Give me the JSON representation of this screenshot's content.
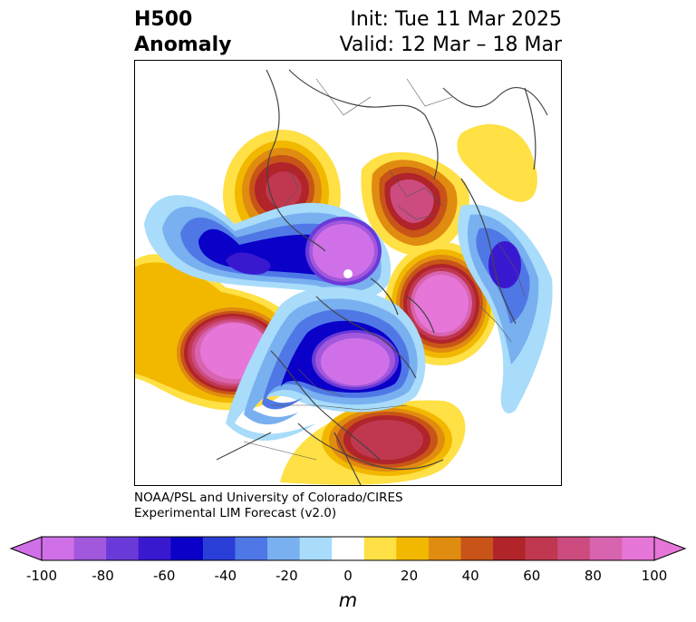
{
  "title": {
    "left_line1": "H500",
    "left_line2": "Anomaly",
    "right_line1": "Init: Tue 11 Mar 2025",
    "right_line2": "Valid: 12 Mar – 18 Mar"
  },
  "credit": {
    "line1": "NOAA/PSL and University of Colorado/CIRES",
    "line2": "Experimental LIM Forecast (v2.0)"
  },
  "colorbar": {
    "units": "m",
    "tick_labels": [
      "-100",
      "-80",
      "-60",
      "-40",
      "-20",
      "0",
      "20",
      "40",
      "60",
      "80",
      "100"
    ],
    "colors": [
      "#d070e8",
      "#a158dc",
      "#6a3ad8",
      "#3a18d0",
      "#0a00c8",
      "#2a3fd8",
      "#4f78e6",
      "#78b0f0",
      "#a8dcfa",
      "#ffffff",
      "#ffe045",
      "#f2b800",
      "#e08c10",
      "#c85418",
      "#b0242a",
      "#c03850",
      "#cc4c80",
      "#d864b0",
      "#e676d8"
    ],
    "min_color": "#d070e8",
    "max_color": "#e676d8"
  },
  "map": {
    "projection": "polar-stereographic",
    "variable": "500 hPa height anomaly"
  }
}
